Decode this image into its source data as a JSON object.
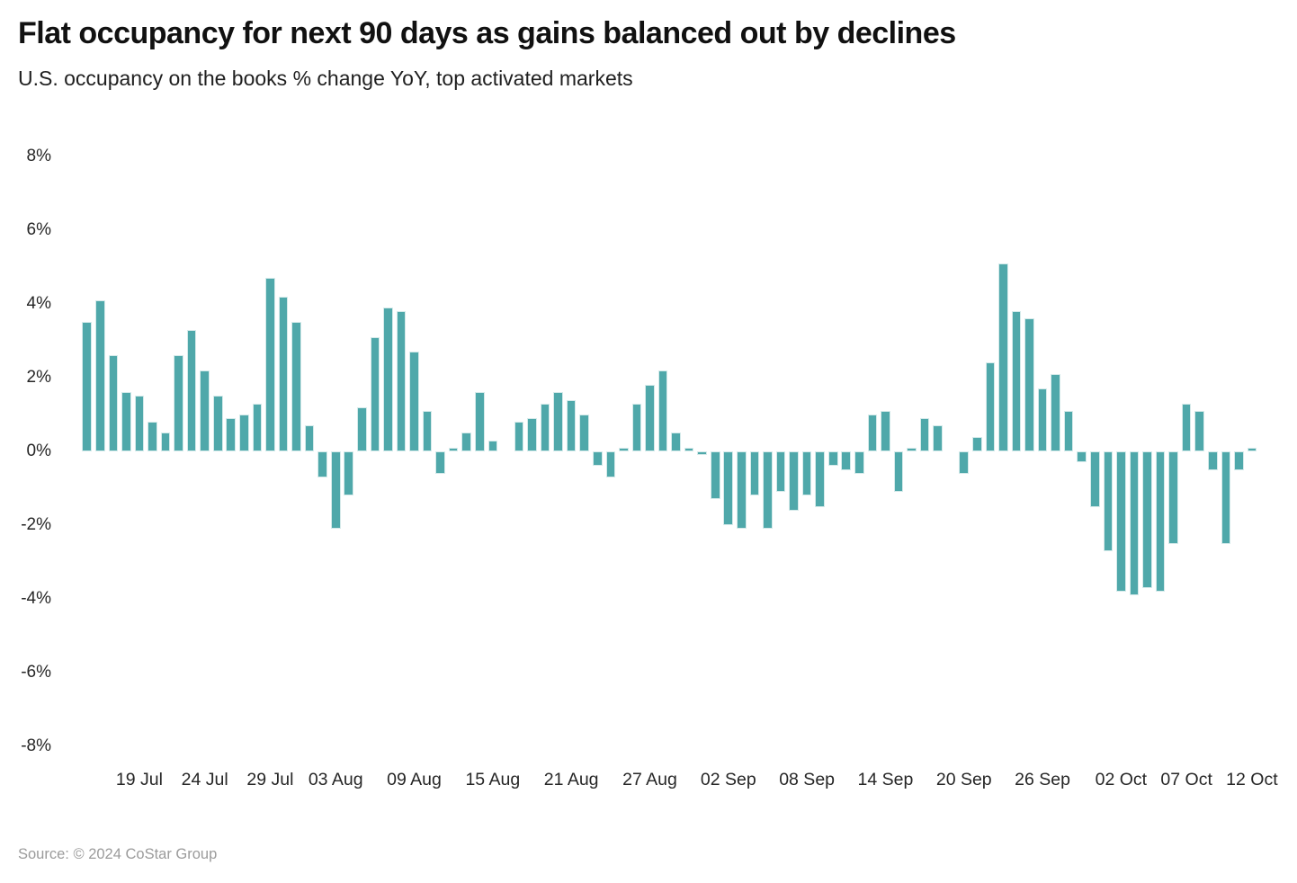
{
  "header": {
    "title": "Flat occupancy for next 90 days as gains balanced out by declines",
    "subtitle": "U.S. occupancy on the books % change YoY, top activated markets"
  },
  "footer": {
    "source": "Source: © 2024 CoStar Group"
  },
  "colors": {
    "bar": "#4FA8AA",
    "bar_edge": "#D5EAEA",
    "title_text": "#111111",
    "axis_text": "#262626",
    "source_text": "#9B9B9B",
    "background": "#FFFFFF"
  },
  "chart_data": {
    "type": "bar",
    "title": "Flat occupancy for next 90 days as gains balanced out by declines",
    "subtitle": "U.S. occupancy on the books % change YoY, top activated markets",
    "xlabel": "",
    "ylabel": "% change YoY",
    "ylim": [
      -8,
      8
    ],
    "grid": false,
    "legend": "none",
    "y_ticks": [
      {
        "value": 8,
        "label": "8%"
      },
      {
        "value": 6,
        "label": "6%"
      },
      {
        "value": 4,
        "label": "4%"
      },
      {
        "value": 2,
        "label": "2%"
      },
      {
        "value": 0,
        "label": "0%"
      },
      {
        "value": -2,
        "label": "-2%"
      },
      {
        "value": -4,
        "label": "-4%"
      },
      {
        "value": -6,
        "label": "-6%"
      },
      {
        "value": -8,
        "label": "-8%"
      }
    ],
    "x_ticks": [
      {
        "label": "19 Jul",
        "day_index": 4
      },
      {
        "label": "24 Jul",
        "day_index": 9
      },
      {
        "label": "29 Jul",
        "day_index": 14
      },
      {
        "label": "03 Aug",
        "day_index": 19
      },
      {
        "label": "09 Aug",
        "day_index": 25
      },
      {
        "label": "15 Aug",
        "day_index": 31
      },
      {
        "label": "21 Aug",
        "day_index": 37
      },
      {
        "label": "27 Aug",
        "day_index": 43
      },
      {
        "label": "02 Sep",
        "day_index": 49
      },
      {
        "label": "08 Sep",
        "day_index": 55
      },
      {
        "label": "14 Sep",
        "day_index": 61
      },
      {
        "label": "20 Sep",
        "day_index": 67
      },
      {
        "label": "26 Sep",
        "day_index": 73
      },
      {
        "label": "02 Oct",
        "day_index": 79
      },
      {
        "label": "07 Oct",
        "day_index": 84
      },
      {
        "label": "12 Oct",
        "day_index": 89
      }
    ],
    "categories": [
      "15 Jul",
      "16 Jul",
      "17 Jul",
      "18 Jul",
      "19 Jul",
      "20 Jul",
      "21 Jul",
      "22 Jul",
      "23 Jul",
      "24 Jul",
      "25 Jul",
      "26 Jul",
      "27 Jul",
      "28 Jul",
      "29 Jul",
      "30 Jul",
      "31 Jul",
      "01 Aug",
      "02 Aug",
      "03 Aug",
      "04 Aug",
      "05 Aug",
      "06 Aug",
      "07 Aug",
      "08 Aug",
      "09 Aug",
      "10 Aug",
      "11 Aug",
      "12 Aug",
      "13 Aug",
      "14 Aug",
      "15 Aug",
      "16 Aug",
      "17 Aug",
      "18 Aug",
      "19 Aug",
      "20 Aug",
      "21 Aug",
      "22 Aug",
      "23 Aug",
      "24 Aug",
      "25 Aug",
      "26 Aug",
      "27 Aug",
      "28 Aug",
      "29 Aug",
      "30 Aug",
      "31 Aug",
      "01 Sep",
      "02 Sep",
      "03 Sep",
      "04 Sep",
      "05 Sep",
      "06 Sep",
      "07 Sep",
      "08 Sep",
      "09 Sep",
      "10 Sep",
      "11 Sep",
      "12 Sep",
      "13 Sep",
      "14 Sep",
      "15 Sep",
      "16 Sep",
      "17 Sep",
      "18 Sep",
      "19 Sep",
      "20 Sep",
      "21 Sep",
      "22 Sep",
      "23 Sep",
      "24 Sep",
      "25 Sep",
      "26 Sep",
      "27 Sep",
      "28 Sep",
      "29 Sep",
      "30 Sep",
      "01 Oct",
      "02 Oct",
      "03 Oct",
      "04 Oct",
      "05 Oct",
      "06 Oct",
      "07 Oct",
      "08 Oct",
      "09 Oct",
      "10 Oct",
      "11 Oct",
      "12 Oct"
    ],
    "values": [
      3.5,
      4.1,
      2.6,
      1.6,
      1.5,
      0.8,
      0.5,
      2.6,
      3.3,
      2.2,
      1.5,
      0.9,
      1.0,
      1.3,
      4.7,
      4.2,
      3.5,
      0.7,
      -0.7,
      -2.1,
      -1.2,
      1.2,
      3.1,
      3.9,
      3.8,
      2.7,
      1.1,
      -0.6,
      0.1,
      0.5,
      1.6,
      0.3,
      0.0,
      0.8,
      0.9,
      1.3,
      1.6,
      1.4,
      1.0,
      -0.4,
      -0.7,
      0.1,
      1.3,
      1.8,
      2.2,
      0.5,
      0.1,
      -0.1,
      -1.3,
      -2.0,
      -2.1,
      -1.2,
      -2.1,
      -1.1,
      -1.6,
      -1.2,
      -1.5,
      -0.4,
      -0.5,
      -0.6,
      1.0,
      1.1,
      -1.1,
      0.1,
      0.9,
      0.7,
      0.0,
      -0.6,
      0.4,
      2.4,
      5.1,
      3.8,
      3.6,
      1.7,
      2.1,
      1.1,
      -0.3,
      -1.5,
      -2.7,
      -3.8,
      -3.9,
      -3.7,
      -3.8,
      -2.5,
      1.3,
      1.1,
      -0.5,
      -2.5,
      -0.5,
      0.1
    ]
  }
}
